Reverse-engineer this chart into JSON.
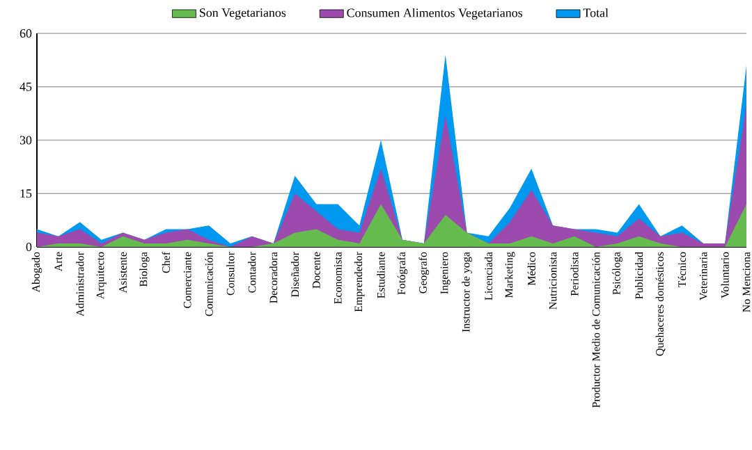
{
  "chart_data": {
    "type": "area",
    "categories": [
      "Abogado",
      "Arte",
      "Administrador",
      "Arquitecto",
      "Asistente",
      "Biologa",
      "Chef",
      "Comerciante",
      "Comunicación",
      "Consultor",
      "Contador",
      "Decoradora",
      "Diseñador",
      "Docente",
      "Economista",
      "Emprendedor",
      "Estudiante",
      "Fotógrafa",
      "Geografo",
      "Ingeniero",
      "Instructor de yoga",
      "Licenciada",
      "Marketing",
      "Médico",
      "Nutricionista",
      "Periodista",
      "Productor Medio de Comunicación",
      "Psicóloga",
      "Publicidad",
      "Quehaceres domésticos",
      "Técnico",
      "Veterinaria",
      "Voluntario",
      "No Menciona"
    ],
    "series": [
      {
        "name": "Son Vegetarianos",
        "color": "#66bb4f",
        "values": [
          0,
          1,
          1,
          0,
          3,
          1,
          1,
          2,
          1,
          0,
          0,
          1,
          4,
          5,
          2,
          1,
          12,
          2,
          1,
          9,
          4,
          1,
          1,
          3,
          1,
          3,
          0,
          1,
          3,
          1,
          0,
          0,
          0,
          12
        ]
      },
      {
        "name": "Consumen Alimentos Vegetarianos",
        "color": "#9c4aad",
        "values": [
          4,
          3,
          5,
          1,
          4,
          2,
          4,
          5,
          2,
          0,
          3,
          1,
          15,
          10,
          5,
          4,
          22,
          2,
          1,
          37,
          4,
          1,
          7,
          16,
          6,
          5,
          4,
          3,
          8,
          3,
          4,
          1,
          1,
          40
        ]
      },
      {
        "name": "Total",
        "color": "#0099ef",
        "values": [
          5,
          3,
          7,
          2,
          4,
          2,
          5,
          5,
          6,
          1,
          3,
          1,
          20,
          12,
          12,
          6,
          30,
          2,
          1,
          54,
          4,
          3,
          11,
          22,
          6,
          5,
          5,
          4,
          12,
          3,
          6,
          1,
          1,
          51
        ]
      }
    ],
    "ylim": [
      0,
      60
    ],
    "yticks": [
      0,
      15,
      30,
      45,
      60
    ],
    "grid": "y",
    "legend": "top"
  }
}
